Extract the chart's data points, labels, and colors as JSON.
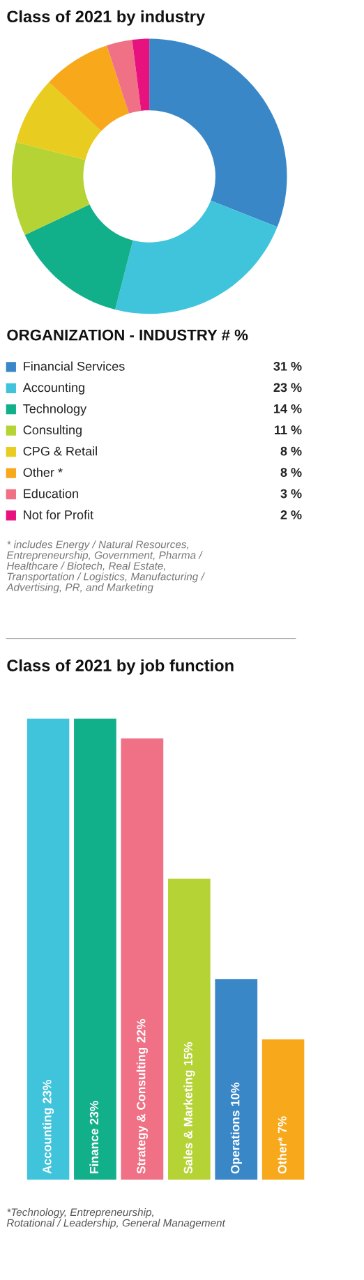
{
  "chart_data": [
    {
      "type": "donut",
      "title": "Class of 2021 by industry",
      "legend": "bottom",
      "legend_title": "ORGANIZATION - INDUSTRY # %",
      "categories": [
        "Financial Services",
        "Accounting",
        "Technology",
        "Consulting",
        "CPG & Retail",
        "Other *",
        "Education",
        "Not for Profit"
      ],
      "values": [
        31,
        23,
        14,
        11,
        8,
        8,
        3,
        2
      ],
      "value_labels": [
        "31 %",
        "23 %",
        "14 %",
        "11 %",
        "8 %",
        "8 %",
        "3 %",
        "2 %"
      ],
      "colors": [
        "#3a87c8",
        "#40c4dc",
        "#12b08a",
        "#b5d334",
        "#e8cc1f",
        "#f7a81b",
        "#f07085",
        "#e8127f"
      ],
      "annotations": [
        "* includes Energy / Natural Resources,\nEntrepreneurship, Government, Pharma /\nHealthcare / Biotech, Real Estate,\nTransportation / Logistics, Manufacturing /\nAdvertising, PR, and Marketing"
      ]
    },
    {
      "type": "bar",
      "title": "Class of 2021 by job function",
      "categories": [
        "Accounting",
        "Finance",
        "Strategy & Consulting",
        "Sales & Marketing",
        "Operations",
        "Other*"
      ],
      "values": [
        23,
        23,
        22,
        15,
        10,
        7
      ],
      "value_labels": [
        "23%",
        "23%",
        "22%",
        "15%",
        "10%",
        "7%"
      ],
      "colors": [
        "#40c4dc",
        "#12b08a",
        "#f07085",
        "#b5d334",
        "#3a87c8",
        "#f7a81b"
      ],
      "annotations": [
        "*Technology, Entrepreneurship,\nRotational / Leadership, General Management"
      ]
    }
  ]
}
